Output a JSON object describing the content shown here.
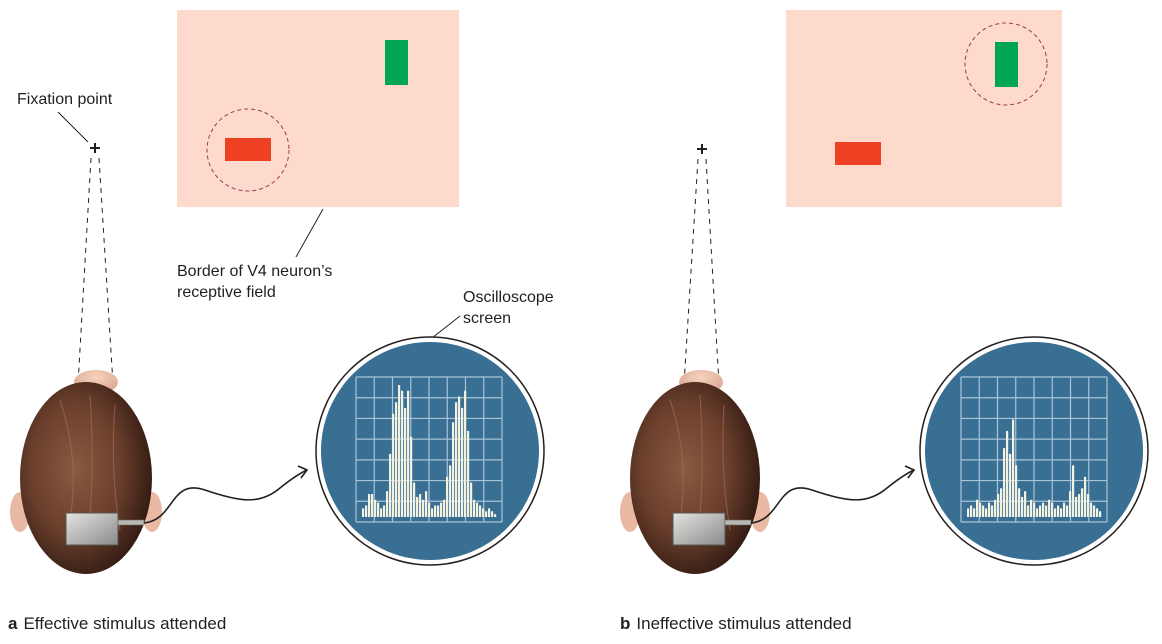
{
  "labels": {
    "fixation_point": "Fixation point",
    "border_line1": "Border of V4 neuron’s",
    "border_line2": "receptive field",
    "oscilloscope_line1": "Oscilloscope",
    "oscilloscope_line2": "screen"
  },
  "panels": [
    {
      "letter": "a",
      "caption": "Effective stimulus attended",
      "attended": "red",
      "response": [
        3,
        4,
        8,
        8,
        6,
        5,
        3,
        4,
        9,
        22,
        36,
        40,
        46,
        44,
        38,
        44,
        28,
        12,
        7,
        8,
        6,
        9,
        5,
        3,
        4,
        4,
        5,
        6,
        14,
        18,
        33,
        40,
        42,
        38,
        44,
        30,
        12,
        6,
        5,
        4,
        3,
        2,
        3,
        2,
        1
      ]
    },
    {
      "letter": "b",
      "caption": "Ineffective stimulus attended",
      "attended": "green",
      "response": [
        3,
        4,
        3,
        6,
        5,
        4,
        3,
        5,
        4,
        6,
        8,
        10,
        24,
        30,
        22,
        34,
        18,
        10,
        7,
        9,
        4,
        6,
        5,
        3,
        4,
        5,
        4,
        6,
        5,
        3,
        4,
        3,
        5,
        4,
        9,
        18,
        7,
        8,
        10,
        14,
        8,
        5,
        4,
        3,
        2
      ]
    }
  ],
  "colors": {
    "display_bg": "#fddacb",
    "red_stimulus": "#ee4023",
    "green_stimulus": "#00a651",
    "receptive_field_border": "#9c3b55",
    "screen_blue": "#3a6f94",
    "grid_lines": "#a9c4d8",
    "trace": "#f3f1df"
  }
}
